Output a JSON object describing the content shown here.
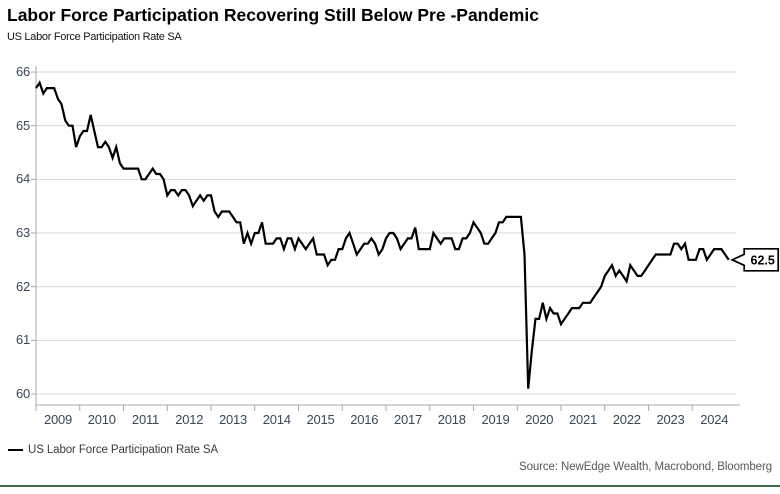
{
  "header": {
    "title": "Labor Force Participation Recovering Still Below Pre -Pandemic",
    "subtitle": "US Labor Force Participation Rate SA"
  },
  "legend": {
    "label": "US Labor Force Participation Rate SA"
  },
  "source": {
    "text": "Source: NewEdge Wealth, Macrobond, Bloomberg"
  },
  "callout": {
    "value": "62.5"
  },
  "colors": {
    "line": "#000000",
    "grid": "#d9d9d9",
    "axis": "#a8a8a8",
    "tick_text": "#3d4754",
    "callout_border": "#000000",
    "callout_fill": "#ffffff",
    "footer_rule": "#3f6b52"
  },
  "chart_data": {
    "type": "line",
    "title": "Labor Force Participation Recovering Still Below Pre -Pandemic",
    "subtitle": "US Labor Force Participation Rate SA",
    "series_name": "US Labor Force Participation Rate SA",
    "xlabel": "",
    "ylabel": "",
    "ylim": [
      60,
      66
    ],
    "y_ticks": [
      66,
      65,
      64,
      63,
      62,
      61,
      60
    ],
    "x_tick_labels": [
      "2009",
      "2010",
      "2011",
      "2012",
      "2013",
      "2014",
      "2015",
      "2016",
      "2017",
      "2018",
      "2019",
      "2020",
      "2021",
      "2022",
      "2023",
      "2024"
    ],
    "frequency": "monthly",
    "start": "2009-01",
    "end": "2024-11",
    "grid": "horizontal",
    "legend_position": "bottom-left",
    "last_value_label": "62.5",
    "values": [
      65.7,
      65.8,
      65.6,
      65.7,
      65.7,
      65.7,
      65.5,
      65.4,
      65.1,
      65.0,
      65.0,
      64.6,
      64.8,
      64.9,
      64.9,
      65.2,
      64.9,
      64.6,
      64.6,
      64.7,
      64.6,
      64.4,
      64.6,
      64.3,
      64.2,
      64.2,
      64.2,
      64.2,
      64.2,
      64.0,
      64.0,
      64.1,
      64.2,
      64.1,
      64.1,
      64.0,
      63.7,
      63.8,
      63.8,
      63.7,
      63.8,
      63.8,
      63.7,
      63.5,
      63.6,
      63.7,
      63.6,
      63.7,
      63.7,
      63.4,
      63.3,
      63.4,
      63.4,
      63.4,
      63.3,
      63.2,
      63.2,
      62.8,
      63.0,
      62.8,
      63.0,
      63.0,
      63.2,
      62.8,
      62.8,
      62.8,
      62.9,
      62.9,
      62.7,
      62.9,
      62.9,
      62.7,
      62.9,
      62.8,
      62.7,
      62.8,
      62.9,
      62.6,
      62.6,
      62.6,
      62.4,
      62.5,
      62.5,
      62.7,
      62.7,
      62.9,
      63.0,
      62.8,
      62.6,
      62.7,
      62.8,
      62.8,
      62.9,
      62.8,
      62.6,
      62.7,
      62.9,
      63.0,
      63.0,
      62.9,
      62.7,
      62.8,
      62.9,
      62.9,
      63.1,
      62.7,
      62.7,
      62.7,
      62.7,
      63.0,
      62.9,
      62.8,
      62.9,
      62.9,
      62.9,
      62.7,
      62.7,
      62.9,
      62.9,
      63.0,
      63.2,
      63.1,
      63.0,
      62.8,
      62.8,
      62.9,
      63.0,
      63.2,
      63.2,
      63.3,
      63.3,
      63.3,
      63.3,
      63.3,
      62.6,
      60.1,
      60.8,
      61.4,
      61.4,
      61.7,
      61.4,
      61.6,
      61.5,
      61.5,
      61.3,
      61.4,
      61.5,
      61.6,
      61.6,
      61.6,
      61.7,
      61.7,
      61.7,
      61.8,
      61.9,
      62.0,
      62.2,
      62.3,
      62.4,
      62.2,
      62.3,
      62.2,
      62.1,
      62.4,
      62.3,
      62.2,
      62.2,
      62.3,
      62.4,
      62.5,
      62.6,
      62.6,
      62.6,
      62.6,
      62.6,
      62.8,
      62.8,
      62.7,
      62.8,
      62.5,
      62.5,
      62.5,
      62.7,
      62.7,
      62.5,
      62.6,
      62.7,
      62.7,
      62.7,
      62.6,
      62.5
    ]
  }
}
